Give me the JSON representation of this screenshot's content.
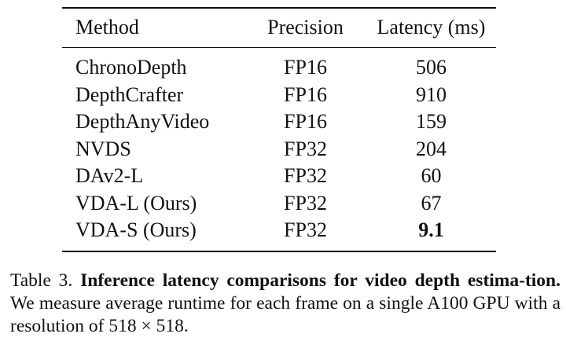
{
  "table": {
    "headers": {
      "method": "Method",
      "precision": "Precision",
      "latency": "Latency (ms)"
    },
    "rows": [
      {
        "method": "ChronoDepth",
        "precision": "FP16",
        "latency": "506"
      },
      {
        "method": "DepthCrafter",
        "precision": "FP16",
        "latency": "910"
      },
      {
        "method": "DepthAnyVideo",
        "precision": "FP16",
        "latency": "159"
      },
      {
        "method": "NVDS",
        "precision": "FP32",
        "latency": "204"
      },
      {
        "method": "DAv2-L",
        "precision": "FP32",
        "latency": "60"
      },
      {
        "method": "VDA-L (Ours)",
        "precision": "FP32",
        "latency": "67"
      },
      {
        "method": "VDA-S (Ours)",
        "precision": "FP32",
        "latency": "9.1"
      }
    ]
  },
  "caption": {
    "label": "Table 3.",
    "bold_title": "Inference latency comparisons for video depth estima-tion.",
    "body": "We measure average runtime for each frame on a single A100 GPU with a resolution of 518 × 518."
  }
}
